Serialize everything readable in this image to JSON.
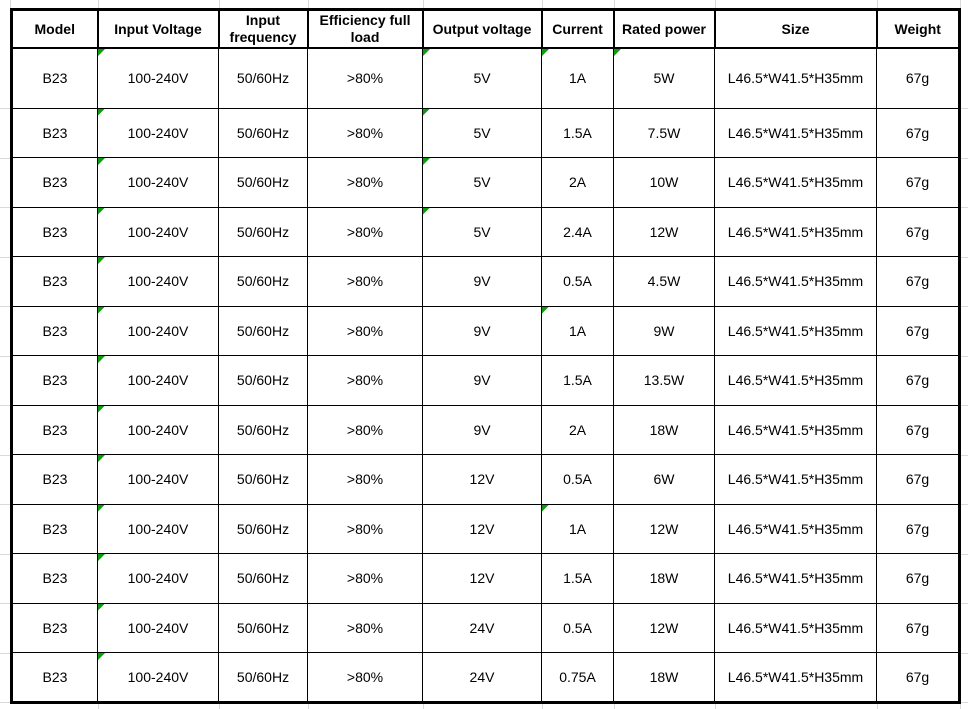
{
  "colors": {
    "flag_green": "#0f9b0f",
    "faint_grid": "#d9d9d9",
    "table_border": "#000000",
    "text": "#000000",
    "background": "#ffffff"
  },
  "table": {
    "columns": [
      {
        "key": "model",
        "label": "Model"
      },
      {
        "key": "input_voltage",
        "label": "Input Voltage"
      },
      {
        "key": "input_frequency",
        "label": "Input frequency"
      },
      {
        "key": "efficiency",
        "label": "Efficiency full load"
      },
      {
        "key": "output_voltage",
        "label": "Output voltage"
      },
      {
        "key": "current",
        "label": "Current"
      },
      {
        "key": "rated_power",
        "label": "Rated power"
      },
      {
        "key": "size",
        "label": "Size"
      },
      {
        "key": "weight",
        "label": "Weight"
      }
    ],
    "rows": [
      {
        "model": "B23",
        "input_voltage": "100-240V",
        "input_frequency": "50/60Hz",
        "efficiency": ">80%",
        "output_voltage": "5V",
        "current": "1A",
        "rated_power": "5W",
        "size": "L46.5*W41.5*H35mm",
        "weight": "67g",
        "flags": [
          "input_voltage",
          "output_voltage",
          "current",
          "rated_power"
        ]
      },
      {
        "model": "B23",
        "input_voltage": "100-240V",
        "input_frequency": "50/60Hz",
        "efficiency": ">80%",
        "output_voltage": "5V",
        "current": "1.5A",
        "rated_power": "7.5W",
        "size": "L46.5*W41.5*H35mm",
        "weight": "67g",
        "flags": [
          "input_voltage",
          "output_voltage"
        ]
      },
      {
        "model": "B23",
        "input_voltage": "100-240V",
        "input_frequency": "50/60Hz",
        "efficiency": ">80%",
        "output_voltage": "5V",
        "current": "2A",
        "rated_power": "10W",
        "size": "L46.5*W41.5*H35mm",
        "weight": "67g",
        "flags": [
          "input_voltage",
          "output_voltage"
        ]
      },
      {
        "model": "B23",
        "input_voltage": "100-240V",
        "input_frequency": "50/60Hz",
        "efficiency": ">80%",
        "output_voltage": "5V",
        "current": "2.4A",
        "rated_power": "12W",
        "size": "L46.5*W41.5*H35mm",
        "weight": "67g",
        "flags": [
          "input_voltage",
          "output_voltage"
        ]
      },
      {
        "model": "B23",
        "input_voltage": "100-240V",
        "input_frequency": "50/60Hz",
        "efficiency": ">80%",
        "output_voltage": "9V",
        "current": "0.5A",
        "rated_power": "4.5W",
        "size": "L46.5*W41.5*H35mm",
        "weight": "67g",
        "flags": [
          "input_voltage"
        ]
      },
      {
        "model": "B23",
        "input_voltage": "100-240V",
        "input_frequency": "50/60Hz",
        "efficiency": ">80%",
        "output_voltage": "9V",
        "current": "1A",
        "rated_power": "9W",
        "size": "L46.5*W41.5*H35mm",
        "weight": "67g",
        "flags": [
          "input_voltage",
          "current"
        ]
      },
      {
        "model": "B23",
        "input_voltage": "100-240V",
        "input_frequency": "50/60Hz",
        "efficiency": ">80%",
        "output_voltage": "9V",
        "current": "1.5A",
        "rated_power": "13.5W",
        "size": "L46.5*W41.5*H35mm",
        "weight": "67g",
        "flags": [
          "input_voltage"
        ]
      },
      {
        "model": "B23",
        "input_voltage": "100-240V",
        "input_frequency": "50/60Hz",
        "efficiency": ">80%",
        "output_voltage": "9V",
        "current": "2A",
        "rated_power": "18W",
        "size": "L46.5*W41.5*H35mm",
        "weight": "67g",
        "flags": [
          "input_voltage"
        ]
      },
      {
        "model": "B23",
        "input_voltage": "100-240V",
        "input_frequency": "50/60Hz",
        "efficiency": ">80%",
        "output_voltage": "12V",
        "current": "0.5A",
        "rated_power": "6W",
        "size": "L46.5*W41.5*H35mm",
        "weight": "67g",
        "flags": [
          "input_voltage"
        ]
      },
      {
        "model": "B23",
        "input_voltage": "100-240V",
        "input_frequency": "50/60Hz",
        "efficiency": ">80%",
        "output_voltage": "12V",
        "current": "1A",
        "rated_power": "12W",
        "size": "L46.5*W41.5*H35mm",
        "weight": "67g",
        "flags": [
          "input_voltage",
          "current"
        ]
      },
      {
        "model": "B23",
        "input_voltage": "100-240V",
        "input_frequency": "50/60Hz",
        "efficiency": ">80%",
        "output_voltage": "12V",
        "current": "1.5A",
        "rated_power": "18W",
        "size": "L46.5*W41.5*H35mm",
        "weight": "67g",
        "flags": [
          "input_voltage"
        ]
      },
      {
        "model": "B23",
        "input_voltage": "100-240V",
        "input_frequency": "50/60Hz",
        "efficiency": ">80%",
        "output_voltage": "24V",
        "current": "0.5A",
        "rated_power": "12W",
        "size": "L46.5*W41.5*H35mm",
        "weight": "67g",
        "flags": [
          "input_voltage"
        ]
      },
      {
        "model": "B23",
        "input_voltage": "100-240V",
        "input_frequency": "50/60Hz",
        "efficiency": ">80%",
        "output_voltage": "24V",
        "current": "0.75A",
        "rated_power": "18W",
        "size": "L46.5*W41.5*H35mm",
        "weight": "67g",
        "flags": [
          "input_voltage"
        ]
      }
    ]
  }
}
